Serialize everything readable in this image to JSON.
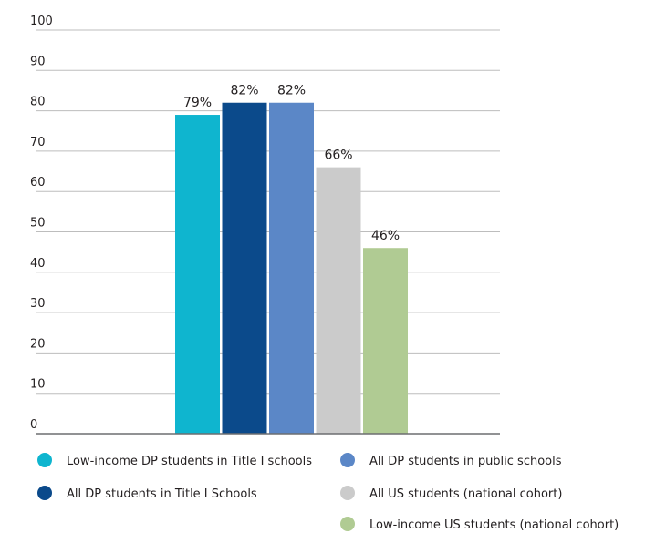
{
  "chart_data": {
    "type": "bar",
    "title": "",
    "xlabel": "",
    "ylabel": "",
    "ylim": [
      0,
      100
    ],
    "yticks": [
      0,
      10,
      20,
      30,
      40,
      50,
      60,
      70,
      80,
      90,
      100
    ],
    "grid": true,
    "legend_position": "bottom",
    "series": [
      {
        "name": "Low-income DP students in Title I schools",
        "value": 79,
        "label": "79%",
        "color": "#0fb5cf"
      },
      {
        "name": "All DP students in Title I Schools",
        "value": 82,
        "label": "82%",
        "color": "#0b4a8b"
      },
      {
        "name": "All DP students in public schools",
        "value": 82,
        "label": "82%",
        "color": "#5b87c7"
      },
      {
        "name": "All US students (national cohort)",
        "value": 66,
        "label": "66%",
        "color": "#cbcbcb"
      },
      {
        "name": "Low-income US students (national cohort)",
        "value": 46,
        "label": "46%",
        "color": "#b0cb93"
      }
    ]
  }
}
